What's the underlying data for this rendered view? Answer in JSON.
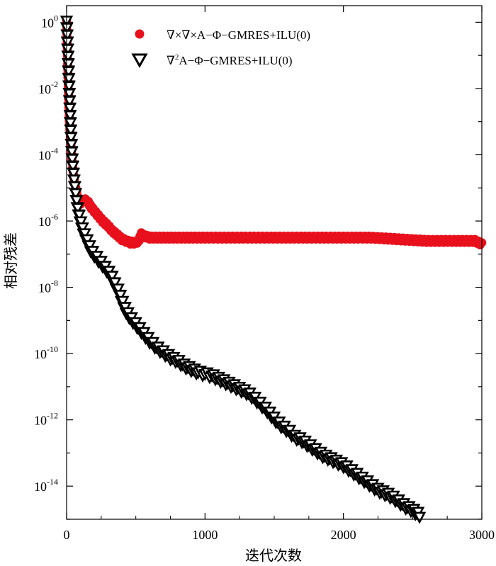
{
  "chart_data": {
    "type": "scatter",
    "yscale": "log",
    "xlabel": "迭代次数",
    "ylabel": "相对残差",
    "xlim": [
      0,
      3000
    ],
    "ylim_exp": [
      -15,
      0.5
    ],
    "x_ticks": [
      {
        "value": 0,
        "label": "0"
      },
      {
        "value": 1000,
        "label": "1000"
      },
      {
        "value": 2000,
        "label": "2000"
      },
      {
        "value": 3000,
        "label": "3000"
      }
    ],
    "y_ticks": [
      {
        "exp": 0,
        "label": "0"
      },
      {
        "exp": -2,
        "label": "-2"
      },
      {
        "exp": -4,
        "label": "-4"
      },
      {
        "exp": -6,
        "label": "-6"
      },
      {
        "exp": -8,
        "label": "-8"
      },
      {
        "exp": -10,
        "label": "-10"
      },
      {
        "exp": -12,
        "label": "-12"
      },
      {
        "exp": -14,
        "label": "-14"
      }
    ],
    "series": [
      {
        "name": "∇×∇×A−Φ−GMRES+ILU(0)",
        "legend_label": "∇×∇×A−Φ−GMRES+ILU(0)",
        "marker": "circle",
        "color": "#e8101c",
        "points": [
          [
            0,
            0
          ],
          [
            5,
            -0.9
          ],
          [
            10,
            -1.7
          ],
          [
            15,
            -2.4
          ],
          [
            20,
            -3.0
          ],
          [
            30,
            -3.7
          ],
          [
            40,
            -4.2
          ],
          [
            50,
            -4.6
          ],
          [
            60,
            -4.9
          ],
          [
            70,
            -5.1
          ],
          [
            80,
            -5.3
          ],
          [
            90,
            -5.4
          ],
          [
            100,
            -5.45
          ],
          [
            120,
            -5.35
          ],
          [
            150,
            -5.4
          ],
          [
            180,
            -5.6
          ],
          [
            200,
            -5.7
          ],
          [
            230,
            -5.85
          ],
          [
            260,
            -6.0
          ],
          [
            300,
            -6.15
          ],
          [
            330,
            -6.3
          ],
          [
            360,
            -6.4
          ],
          [
            400,
            -6.55
          ],
          [
            430,
            -6.6
          ],
          [
            460,
            -6.65
          ],
          [
            500,
            -6.65
          ],
          [
            520,
            -6.6
          ],
          [
            540,
            -6.4
          ],
          [
            560,
            -6.45
          ],
          [
            600,
            -6.5
          ],
          [
            700,
            -6.5
          ],
          [
            800,
            -6.5
          ],
          [
            900,
            -6.5
          ],
          [
            1000,
            -6.5
          ],
          [
            1200,
            -6.5
          ],
          [
            1400,
            -6.5
          ],
          [
            1600,
            -6.5
          ],
          [
            1800,
            -6.5
          ],
          [
            2000,
            -6.5
          ],
          [
            2200,
            -6.5
          ],
          [
            2400,
            -6.55
          ],
          [
            2600,
            -6.6
          ],
          [
            2800,
            -6.6
          ],
          [
            2950,
            -6.6
          ],
          [
            3000,
            -6.7
          ]
        ]
      },
      {
        "name": "∇²A−Φ−GMRES+ILU(0)",
        "legend_label": "A−Φ−GMRES+ILU(0)",
        "legend_prefix": "∇",
        "legend_sup": "2",
        "marker": "triangle-down",
        "color": "#000000",
        "points": [
          [
            0,
            0
          ],
          [
            10,
            -1.0
          ],
          [
            20,
            -2.2
          ],
          [
            30,
            -3.3
          ],
          [
            40,
            -4.1
          ],
          [
            50,
            -4.6
          ],
          [
            60,
            -5.0
          ],
          [
            70,
            -5.35
          ],
          [
            80,
            -5.65
          ],
          [
            100,
            -6.0
          ],
          [
            120,
            -6.3
          ],
          [
            150,
            -6.6
          ],
          [
            180,
            -6.9
          ],
          [
            200,
            -7.0
          ],
          [
            250,
            -7.25
          ],
          [
            300,
            -7.5
          ],
          [
            330,
            -7.7
          ],
          [
            350,
            -7.9
          ],
          [
            380,
            -8.15
          ],
          [
            400,
            -8.4
          ],
          [
            430,
            -8.7
          ],
          [
            460,
            -8.9
          ],
          [
            500,
            -9.1
          ],
          [
            550,
            -9.35
          ],
          [
            600,
            -9.6
          ],
          [
            650,
            -9.8
          ],
          [
            700,
            -9.95
          ],
          [
            750,
            -10.1
          ],
          [
            800,
            -10.2
          ],
          [
            850,
            -10.35
          ],
          [
            900,
            -10.45
          ],
          [
            950,
            -10.55
          ],
          [
            1000,
            -10.6
          ],
          [
            1050,
            -10.65
          ],
          [
            1100,
            -10.75
          ],
          [
            1150,
            -10.85
          ],
          [
            1200,
            -10.95
          ],
          [
            1250,
            -11.05
          ],
          [
            1300,
            -11.15
          ],
          [
            1350,
            -11.3
          ],
          [
            1400,
            -11.5
          ],
          [
            1450,
            -11.7
          ],
          [
            1500,
            -11.95
          ],
          [
            1550,
            -12.15
          ],
          [
            1600,
            -12.3
          ],
          [
            1650,
            -12.5
          ],
          [
            1700,
            -12.6
          ],
          [
            1750,
            -12.75
          ],
          [
            1800,
            -12.9
          ],
          [
            1850,
            -13.05
          ],
          [
            1900,
            -13.15
          ],
          [
            1950,
            -13.25
          ],
          [
            2000,
            -13.35
          ],
          [
            2050,
            -13.5
          ],
          [
            2100,
            -13.65
          ],
          [
            2150,
            -13.8
          ],
          [
            2200,
            -13.95
          ],
          [
            2250,
            -14.1
          ],
          [
            2300,
            -14.2
          ],
          [
            2350,
            -14.3
          ],
          [
            2400,
            -14.45
          ],
          [
            2450,
            -14.6
          ],
          [
            2500,
            -14.7
          ],
          [
            2530,
            -14.8
          ],
          [
            2550,
            -14.85
          ]
        ]
      }
    ]
  }
}
